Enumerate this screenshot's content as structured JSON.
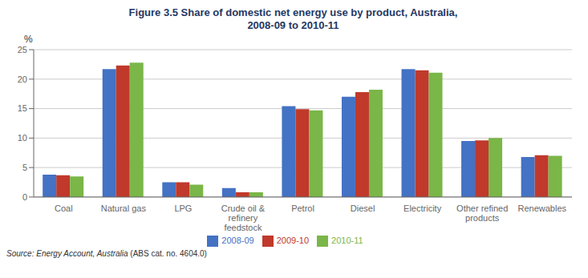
{
  "chart_data": {
    "type": "bar",
    "title": "Figure 3.5 Share of domestic net energy use by product, Australia,\n2008-09 to 2010-11",
    "y_label": "%",
    "categories": [
      "Coal",
      "Natural gas",
      "LPG",
      "Crude oil &\nrefinery\nfeedstock",
      "Petrol",
      "Diesel",
      "Electricity",
      "Other refined\nproducts",
      "Renewables"
    ],
    "series": [
      {
        "name": "2008-09",
        "color": "#4472C4",
        "values": [
          3.8,
          21.7,
          2.5,
          1.5,
          15.4,
          17.0,
          21.7,
          9.5,
          6.8
        ]
      },
      {
        "name": "2009-10",
        "color": "#C0392B",
        "values": [
          3.7,
          22.3,
          2.5,
          0.8,
          14.9,
          17.8,
          21.5,
          9.6,
          7.1
        ]
      },
      {
        "name": "2010-11",
        "color": "#7AB648",
        "values": [
          3.5,
          22.8,
          2.1,
          0.8,
          14.7,
          18.2,
          21.1,
          10.0,
          7.0
        ]
      }
    ],
    "ylim": [
      0,
      25
    ],
    "yticks": [
      0,
      5,
      10,
      15,
      20,
      25
    ],
    "grid": true,
    "legend": "bottom",
    "annotations": [
      "Source: Energy Account, Australia",
      " (ABS cat. no. 4604.0)"
    ]
  }
}
